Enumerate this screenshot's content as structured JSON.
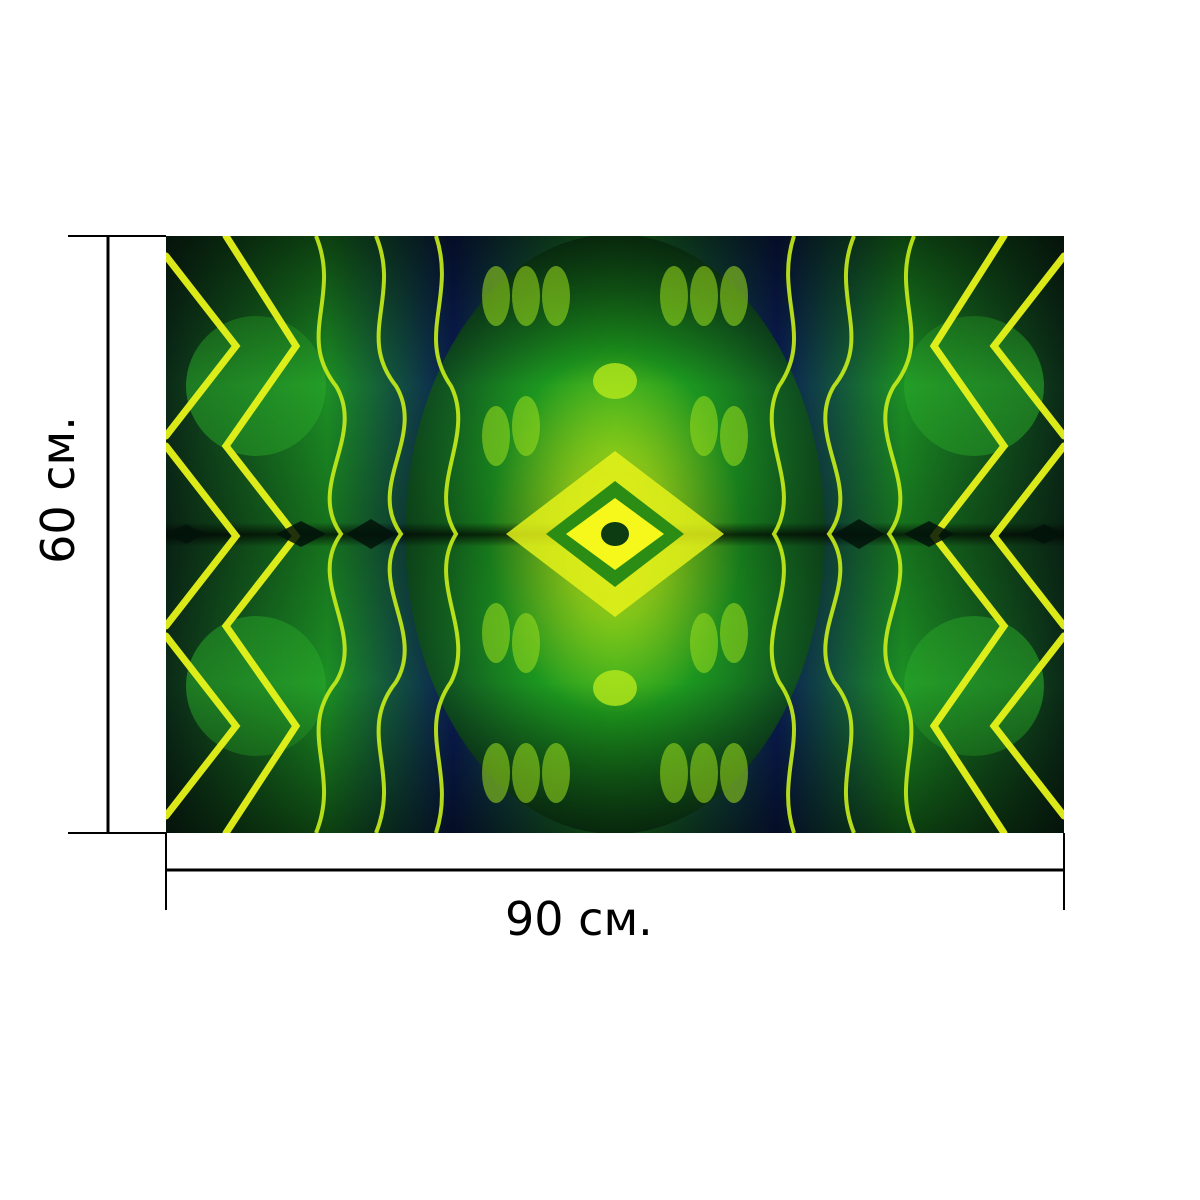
{
  "dimensions": {
    "width_label": "90 см.",
    "height_label": "60 см."
  },
  "artwork": {
    "description_icon": "kaleidoscope-pattern",
    "colors": {
      "dark_blue": "#0a1f5e",
      "green": "#1f9a1a",
      "bright_green": "#4fd320",
      "yellow": "#f2f21a",
      "black": "#020a05"
    }
  },
  "colors": {
    "line": "#000000",
    "background": "#ffffff"
  }
}
